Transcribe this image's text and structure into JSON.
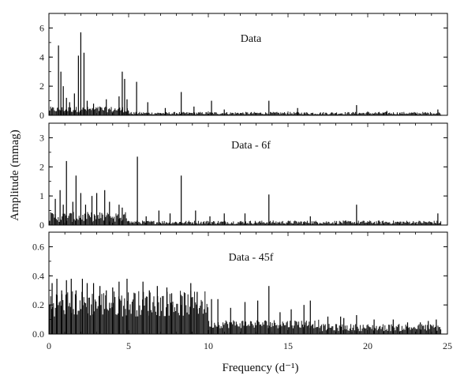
{
  "chart_data": {
    "type": "line",
    "xlabel": "Frequency (d⁻¹)",
    "ylabel": "Amplitude (mmag)",
    "xlim": [
      0,
      25
    ],
    "x_ticks": [
      "0",
      "5",
      "10",
      "15",
      "20",
      "25"
    ],
    "grid": false,
    "legend": "none",
    "panels": [
      {
        "title": "Data",
        "ylim": [
          0,
          7
        ],
        "y_ticks": [
          "0",
          "2",
          "4",
          "6"
        ],
        "peaks": [
          {
            "x": 0.6,
            "y": 4.8
          },
          {
            "x": 0.75,
            "y": 3.0
          },
          {
            "x": 0.9,
            "y": 2.0
          },
          {
            "x": 1.1,
            "y": 1.2
          },
          {
            "x": 1.3,
            "y": 0.9
          },
          {
            "x": 1.6,
            "y": 1.5
          },
          {
            "x": 1.85,
            "y": 4.1
          },
          {
            "x": 2.0,
            "y": 5.7
          },
          {
            "x": 2.2,
            "y": 4.3
          },
          {
            "x": 2.4,
            "y": 1.0
          },
          {
            "x": 2.8,
            "y": 0.8
          },
          {
            "x": 3.2,
            "y": 0.6
          },
          {
            "x": 3.6,
            "y": 1.1
          },
          {
            "x": 4.4,
            "y": 1.3
          },
          {
            "x": 4.6,
            "y": 3.0
          },
          {
            "x": 4.75,
            "y": 2.5
          },
          {
            "x": 4.9,
            "y": 1.1
          },
          {
            "x": 5.5,
            "y": 2.3
          },
          {
            "x": 6.2,
            "y": 0.9
          },
          {
            "x": 7.3,
            "y": 0.5
          },
          {
            "x": 8.3,
            "y": 1.6
          },
          {
            "x": 9.1,
            "y": 0.6
          },
          {
            "x": 10.2,
            "y": 1.0
          },
          {
            "x": 11.0,
            "y": 0.4
          },
          {
            "x": 13.8,
            "y": 1.0
          },
          {
            "x": 15.6,
            "y": 0.5
          },
          {
            "x": 19.3,
            "y": 0.7
          },
          {
            "x": 21.2,
            "y": 0.3
          },
          {
            "x": 24.4,
            "y": 0.4
          }
        ]
      },
      {
        "title": "Data - 6f",
        "ylim": [
          0,
          3.5
        ],
        "y_ticks": [
          "0",
          "1",
          "2",
          "3"
        ],
        "peaks": [
          {
            "x": 0.4,
            "y": 0.9
          },
          {
            "x": 0.7,
            "y": 1.2
          },
          {
            "x": 0.9,
            "y": 0.7
          },
          {
            "x": 1.1,
            "y": 2.2
          },
          {
            "x": 1.5,
            "y": 0.8
          },
          {
            "x": 1.7,
            "y": 1.7
          },
          {
            "x": 2.0,
            "y": 1.1
          },
          {
            "x": 2.3,
            "y": 0.7
          },
          {
            "x": 2.7,
            "y": 1.0
          },
          {
            "x": 3.0,
            "y": 1.1
          },
          {
            "x": 3.5,
            "y": 1.2
          },
          {
            "x": 3.8,
            "y": 0.8
          },
          {
            "x": 4.4,
            "y": 0.7
          },
          {
            "x": 4.6,
            "y": 0.6
          },
          {
            "x": 5.55,
            "y": 2.35
          },
          {
            "x": 6.1,
            "y": 0.3
          },
          {
            "x": 6.9,
            "y": 0.5
          },
          {
            "x": 7.6,
            "y": 0.4
          },
          {
            "x": 8.3,
            "y": 1.7
          },
          {
            "x": 9.2,
            "y": 0.5
          },
          {
            "x": 10.1,
            "y": 0.3
          },
          {
            "x": 11.0,
            "y": 0.4
          },
          {
            "x": 12.3,
            "y": 0.4
          },
          {
            "x": 13.8,
            "y": 1.05
          },
          {
            "x": 16.4,
            "y": 0.3
          },
          {
            "x": 19.3,
            "y": 0.7
          },
          {
            "x": 24.4,
            "y": 0.4
          }
        ]
      },
      {
        "title": "Data - 45f",
        "ylim": [
          0,
          0.7
        ],
        "y_ticks": [
          "0.0",
          "0.2",
          "0.4",
          "0.6"
        ],
        "peaks": [
          {
            "x": 0.2,
            "y": 0.35
          },
          {
            "x": 0.5,
            "y": 0.38
          },
          {
            "x": 0.8,
            "y": 0.3
          },
          {
            "x": 1.1,
            "y": 0.37
          },
          {
            "x": 1.4,
            "y": 0.38
          },
          {
            "x": 1.7,
            "y": 0.3
          },
          {
            "x": 2.1,
            "y": 0.38
          },
          {
            "x": 2.4,
            "y": 0.35
          },
          {
            "x": 2.8,
            "y": 0.35
          },
          {
            "x": 3.2,
            "y": 0.33
          },
          {
            "x": 3.6,
            "y": 0.3
          },
          {
            "x": 4.0,
            "y": 0.32
          },
          {
            "x": 4.4,
            "y": 0.36
          },
          {
            "x": 4.9,
            "y": 0.38
          },
          {
            "x": 5.4,
            "y": 0.28
          },
          {
            "x": 5.9,
            "y": 0.36
          },
          {
            "x": 6.3,
            "y": 0.3
          },
          {
            "x": 6.8,
            "y": 0.33
          },
          {
            "x": 7.4,
            "y": 0.32
          },
          {
            "x": 7.7,
            "y": 0.28
          },
          {
            "x": 8.3,
            "y": 0.2
          },
          {
            "x": 8.9,
            "y": 0.35
          },
          {
            "x": 9.3,
            "y": 0.29
          },
          {
            "x": 10.2,
            "y": 0.24
          },
          {
            "x": 10.6,
            "y": 0.24
          },
          {
            "x": 11.4,
            "y": 0.18
          },
          {
            "x": 12.3,
            "y": 0.22
          },
          {
            "x": 13.1,
            "y": 0.23
          },
          {
            "x": 13.8,
            "y": 0.33
          },
          {
            "x": 14.5,
            "y": 0.15
          },
          {
            "x": 15.2,
            "y": 0.17
          },
          {
            "x": 16.0,
            "y": 0.2
          },
          {
            "x": 16.4,
            "y": 0.23
          },
          {
            "x": 17.5,
            "y": 0.12
          },
          {
            "x": 18.3,
            "y": 0.12
          },
          {
            "x": 18.5,
            "y": 0.11
          },
          {
            "x": 19.3,
            "y": 0.13
          },
          {
            "x": 20.4,
            "y": 0.1
          },
          {
            "x": 21.6,
            "y": 0.1
          },
          {
            "x": 22.5,
            "y": 0.08
          },
          {
            "x": 23.3,
            "y": 0.08
          },
          {
            "x": 23.8,
            "y": 0.09
          },
          {
            "x": 24.3,
            "y": 0.1
          }
        ]
      }
    ]
  }
}
